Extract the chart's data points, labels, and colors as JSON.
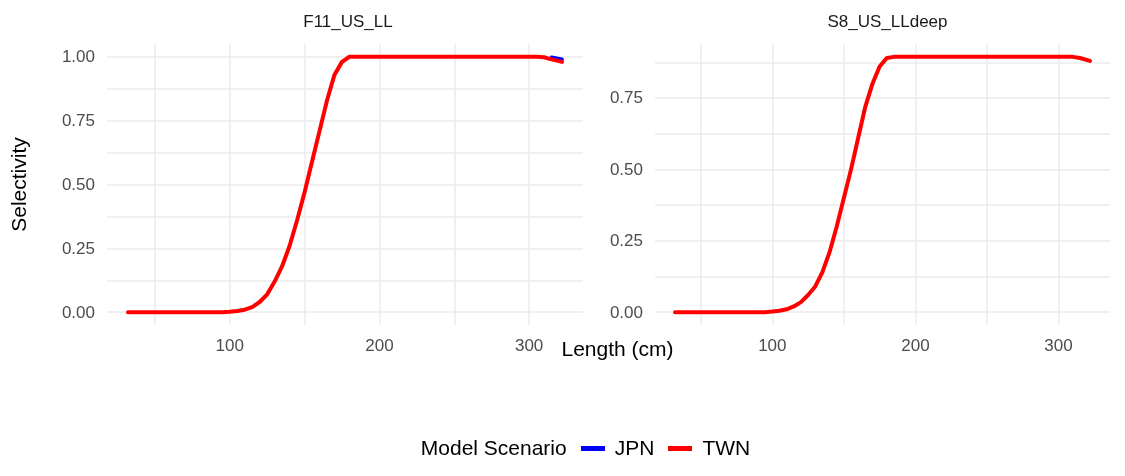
{
  "chart_data": [
    {
      "type": "line",
      "title": "F11_US_LL",
      "xlabel": "Length (cm)",
      "ylabel": "Selectivity",
      "legend_title": "Model Scenario",
      "legend": "bottom",
      "grid": true,
      "line_style": "solid",
      "marker": "none",
      "x": [
        32,
        40,
        50,
        60,
        70,
        80,
        90,
        95,
        100,
        105,
        110,
        115,
        120,
        125,
        130,
        135,
        140,
        145,
        150,
        155,
        160,
        165,
        170,
        175,
        180,
        190,
        200,
        250,
        300,
        305,
        310,
        315,
        322
      ],
      "xlim": [
        18,
        336
      ],
      "xticks": [
        {
          "value": 50,
          "label": null
        },
        100,
        {
          "value": 150,
          "label": null
        },
        200,
        {
          "value": 250,
          "label": null
        },
        300
      ],
      "ylim": [
        -0.05,
        1.05
      ],
      "yticks": [
        {
          "value": 0,
          "label": "0.00"
        },
        {
          "value": 0.125,
          "label": null
        },
        {
          "value": 0.25,
          "label": "0.25"
        },
        {
          "value": 0.375,
          "label": null
        },
        {
          "value": 0.5,
          "label": "0.50"
        },
        {
          "value": 0.625,
          "label": null
        },
        {
          "value": 0.75,
          "label": "0.75"
        },
        {
          "value": 0.875,
          "label": null
        },
        {
          "value": 1,
          "label": "1.00"
        }
      ],
      "series": [
        {
          "name": "JPN",
          "color": "#0000ff",
          "values": [
            null,
            null,
            null,
            null,
            null,
            null,
            null,
            null,
            null,
            null,
            null,
            null,
            null,
            null,
            null,
            null,
            null,
            null,
            null,
            null,
            null,
            null,
            null,
            null,
            null,
            null,
            null,
            null,
            null,
            null,
            null,
            0.998,
            0.99
          ]
        },
        {
          "name": "TWN",
          "color": "#ff0000",
          "values": [
            0,
            0,
            0,
            0,
            0,
            0,
            0,
            0,
            0.002,
            0.005,
            0.01,
            0.02,
            0.04,
            0.07,
            0.12,
            0.18,
            0.26,
            0.36,
            0.47,
            0.59,
            0.71,
            0.83,
            0.93,
            0.98,
            1,
            1,
            1,
            1,
            1,
            1,
            0.998,
            0.99,
            0.98
          ]
        }
      ]
    },
    {
      "type": "line",
      "title": "S8_US_LLdeep",
      "grid": true,
      "line_style": "solid",
      "marker": "none",
      "x": [
        32,
        40,
        50,
        60,
        70,
        80,
        90,
        95,
        100,
        105,
        110,
        115,
        120,
        125,
        130,
        135,
        140,
        145,
        150,
        155,
        160,
        165,
        170,
        175,
        180,
        185,
        200,
        250,
        300,
        310,
        315,
        322
      ],
      "xlim": [
        18,
        336
      ],
      "xticks": [
        {
          "value": 50,
          "label": null
        },
        100,
        {
          "value": 150,
          "label": null
        },
        200,
        {
          "value": 250,
          "label": null
        },
        300
      ],
      "ylim": [
        -0.045,
        0.939
      ],
      "yticks": [
        {
          "value": 0,
          "label": "0.00"
        },
        {
          "value": 0.125,
          "label": null
        },
        {
          "value": 0.25,
          "label": "0.25"
        },
        {
          "value": 0.375,
          "label": null
        },
        {
          "value": 0.5,
          "label": "0.50"
        },
        {
          "value": 0.625,
          "label": null
        },
        {
          "value": 0.75,
          "label": "0.75"
        },
        {
          "value": 0.875,
          "label": null
        }
      ],
      "series": [
        {
          "name": "TWN",
          "color": "#ff0000",
          "values": [
            0,
            0,
            0,
            0,
            0,
            0,
            0,
            0,
            0.002,
            0.005,
            0.01,
            0.02,
            0.035,
            0.06,
            0.09,
            0.14,
            0.21,
            0.3,
            0.4,
            0.5,
            0.61,
            0.72,
            0.8,
            0.86,
            0.89,
            0.894,
            0.894,
            0.894,
            0.894,
            0.894,
            0.89,
            0.88
          ]
        }
      ]
    }
  ]
}
